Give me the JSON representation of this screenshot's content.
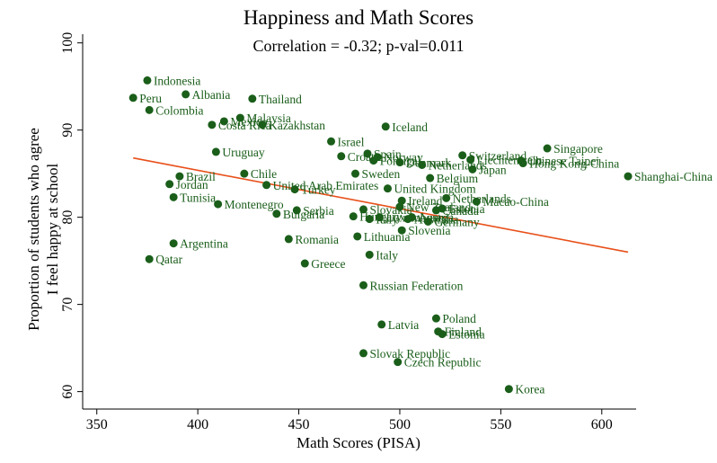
{
  "chart_data": {
    "type": "scatter",
    "title": "Happiness and Math Scores",
    "annotation": "Correlation = -0.32; p-val=0.011",
    "xlabel": "Math Scores (PISA)",
    "ylabel_lines": [
      "Proportion of students who agree",
      "I feel happy at school"
    ],
    "xlim": [
      343,
      617
    ],
    "ylim": [
      58,
      101
    ],
    "xticks": [
      350,
      400,
      450,
      500,
      550,
      600
    ],
    "yticks": [
      60,
      70,
      80,
      90,
      100
    ],
    "grid": false,
    "fit_line": {
      "x": [
        368,
        613
      ],
      "y": [
        86.8,
        76.0
      ]
    },
    "colors": {
      "points": "#1a5e1a",
      "labels": "#1a5e1a",
      "fit": "#e8501a",
      "axis": "#000000"
    },
    "points": [
      {
        "label": "Indonesia",
        "x": 375,
        "y": 95.7
      },
      {
        "label": "Peru",
        "x": 368,
        "y": 93.7
      },
      {
        "label": "Albania",
        "x": 394,
        "y": 94.1
      },
      {
        "label": "Thailand",
        "x": 427,
        "y": 93.6
      },
      {
        "label": "Colombia",
        "x": 376,
        "y": 92.3
      },
      {
        "label": "Malaysia",
        "x": 421,
        "y": 91.4
      },
      {
        "label": "Mexico",
        "x": 413,
        "y": 91.0
      },
      {
        "label": "Costa Rica",
        "x": 407,
        "y": 90.6
      },
      {
        "label": "Kazakhstan",
        "x": 432,
        "y": 90.6
      },
      {
        "label": "Iceland",
        "x": 493,
        "y": 90.4
      },
      {
        "label": "Israel",
        "x": 466,
        "y": 88.7
      },
      {
        "label": "Singapore",
        "x": 573,
        "y": 87.9
      },
      {
        "label": "Uruguay",
        "x": 409,
        "y": 87.5
      },
      {
        "label": "Spain",
        "x": 484,
        "y": 87.3
      },
      {
        "label": "Croatia",
        "x": 471,
        "y": 87.0
      },
      {
        "label": "Norway",
        "x": 489,
        "y": 86.9
      },
      {
        "label": "Switzerland",
        "x": 531,
        "y": 87.1
      },
      {
        "label": "Portugal",
        "x": 487,
        "y": 86.5
      },
      {
        "label": "Denmark",
        "x": 500,
        "y": 86.3
      },
      {
        "label": "Netherlands",
        "x": 511,
        "y": 86.0
      },
      {
        "label": "Liechtenstein",
        "x": 535,
        "y": 86.6
      },
      {
        "label": "Chinese Taipei",
        "x": 560,
        "y": 86.5
      },
      {
        "label": "Hong Kong-China",
        "x": 561,
        "y": 86.2
      },
      {
        "label": "Japan",
        "x": 536,
        "y": 85.5
      },
      {
        "label": "Sweden",
        "x": 478,
        "y": 85.0
      },
      {
        "label": "Chile",
        "x": 423,
        "y": 85.0
      },
      {
        "label": "Brazil",
        "x": 391,
        "y": 84.7
      },
      {
        "label": "Belgium",
        "x": 515,
        "y": 84.5
      },
      {
        "label": "Shanghai-China",
        "x": 613,
        "y": 84.7
      },
      {
        "label": "Jordan",
        "x": 386,
        "y": 83.8
      },
      {
        "label": "United Arab Emirates",
        "x": 434,
        "y": 83.7
      },
      {
        "label": "Turkey",
        "x": 448,
        "y": 83.2
      },
      {
        "label": "United Kingdom",
        "x": 494,
        "y": 83.3
      },
      {
        "label": "Tunisia",
        "x": 388,
        "y": 82.3
      },
      {
        "label": "Ireland",
        "x": 501,
        "y": 81.9
      },
      {
        "label": "Netherlands",
        "x": 523,
        "y": 82.2
      },
      {
        "label": "Macao-China",
        "x": 538,
        "y": 81.8
      },
      {
        "label": "Montenegro",
        "x": 410,
        "y": 81.5
      },
      {
        "label": "New Zealand",
        "x": 500,
        "y": 81.2
      },
      {
        "label": "Estonia",
        "x": 521,
        "y": 81.0
      },
      {
        "label": "Canada",
        "x": 518,
        "y": 80.8
      },
      {
        "label": "Slovakia",
        "x": 482,
        "y": 80.9
      },
      {
        "label": "Serbia",
        "x": 449,
        "y": 80.8
      },
      {
        "label": "Bulgaria",
        "x": 439,
        "y": 80.4
      },
      {
        "label": "Hungary",
        "x": 477,
        "y": 80.1
      },
      {
        "label": "Luxembourg",
        "x": 490,
        "y": 80.0
      },
      {
        "label": "Austria",
        "x": 506,
        "y": 80.0
      },
      {
        "label": "Australia",
        "x": 504,
        "y": 79.8
      },
      {
        "label": "Italy",
        "x": 485,
        "y": 79.8
      },
      {
        "label": "Germany",
        "x": 514,
        "y": 79.5
      },
      {
        "label": "Slovenia",
        "x": 501,
        "y": 78.5
      },
      {
        "label": "Lithuania",
        "x": 479,
        "y": 77.8
      },
      {
        "label": "Romania",
        "x": 445,
        "y": 77.5
      },
      {
        "label": "Argentina",
        "x": 388,
        "y": 77.0
      },
      {
        "label": "Italy",
        "x": 485,
        "y": 75.7
      },
      {
        "label": "Qatar",
        "x": 376,
        "y": 75.2
      },
      {
        "label": "Greece",
        "x": 453,
        "y": 74.7
      },
      {
        "label": "Russian Federation",
        "x": 482,
        "y": 72.2
      },
      {
        "label": "Poland",
        "x": 518,
        "y": 68.4
      },
      {
        "label": "Latvia",
        "x": 491,
        "y": 67.7
      },
      {
        "label": "Finland",
        "x": 519,
        "y": 66.9
      },
      {
        "label": "Estonia",
        "x": 521,
        "y": 66.6
      },
      {
        "label": "Slovak Republic",
        "x": 482,
        "y": 64.4
      },
      {
        "label": "Czech Republic",
        "x": 499,
        "y": 63.4
      },
      {
        "label": "Korea",
        "x": 554,
        "y": 60.3
      }
    ]
  }
}
